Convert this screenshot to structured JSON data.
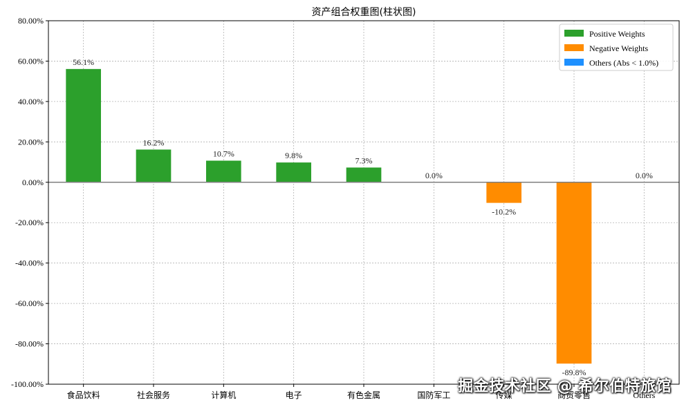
{
  "chart_data": {
    "type": "bar",
    "title": "资产组合权重图(柱状图)",
    "categories": [
      "食品饮料",
      "社会服务",
      "计算机",
      "电子",
      "有色金属",
      "国防军工",
      "传媒",
      "商贸零售",
      "Others"
    ],
    "values": [
      56.1,
      16.2,
      10.7,
      9.8,
      7.3,
      0.0,
      -10.2,
      -89.8,
      0.0
    ],
    "value_labels": [
      "56.1%",
      "16.2%",
      "10.7%",
      "9.8%",
      "7.3%",
      "0.0%",
      "-10.2%",
      "-89.8%",
      "0.0%"
    ],
    "ylim": [
      -100,
      80
    ],
    "yticks": [
      80,
      60,
      40,
      20,
      0,
      -20,
      -40,
      -60,
      -80,
      -100
    ],
    "ytick_labels": [
      "80.00%",
      "60.00%",
      "40.00%",
      "20.00%",
      "0.00%",
      "-20.00%",
      "-40.00%",
      "-60.00%",
      "-80.00%",
      "-100.00%"
    ],
    "grid": true,
    "legend_position": "top-right",
    "legend": [
      {
        "label": "Positive Weights",
        "color": "#2ca02c"
      },
      {
        "label": "Negative Weights",
        "color": "#ff8c00"
      },
      {
        "label": "Others (Abs < 1.0%)",
        "color": "#1e90ff"
      }
    ],
    "colors": {
      "positive": "#2ca02c",
      "negative": "#ff8c00",
      "others": "#1e90ff"
    }
  },
  "watermark": "掘金技术社区 @ 希尔伯特旅馆"
}
